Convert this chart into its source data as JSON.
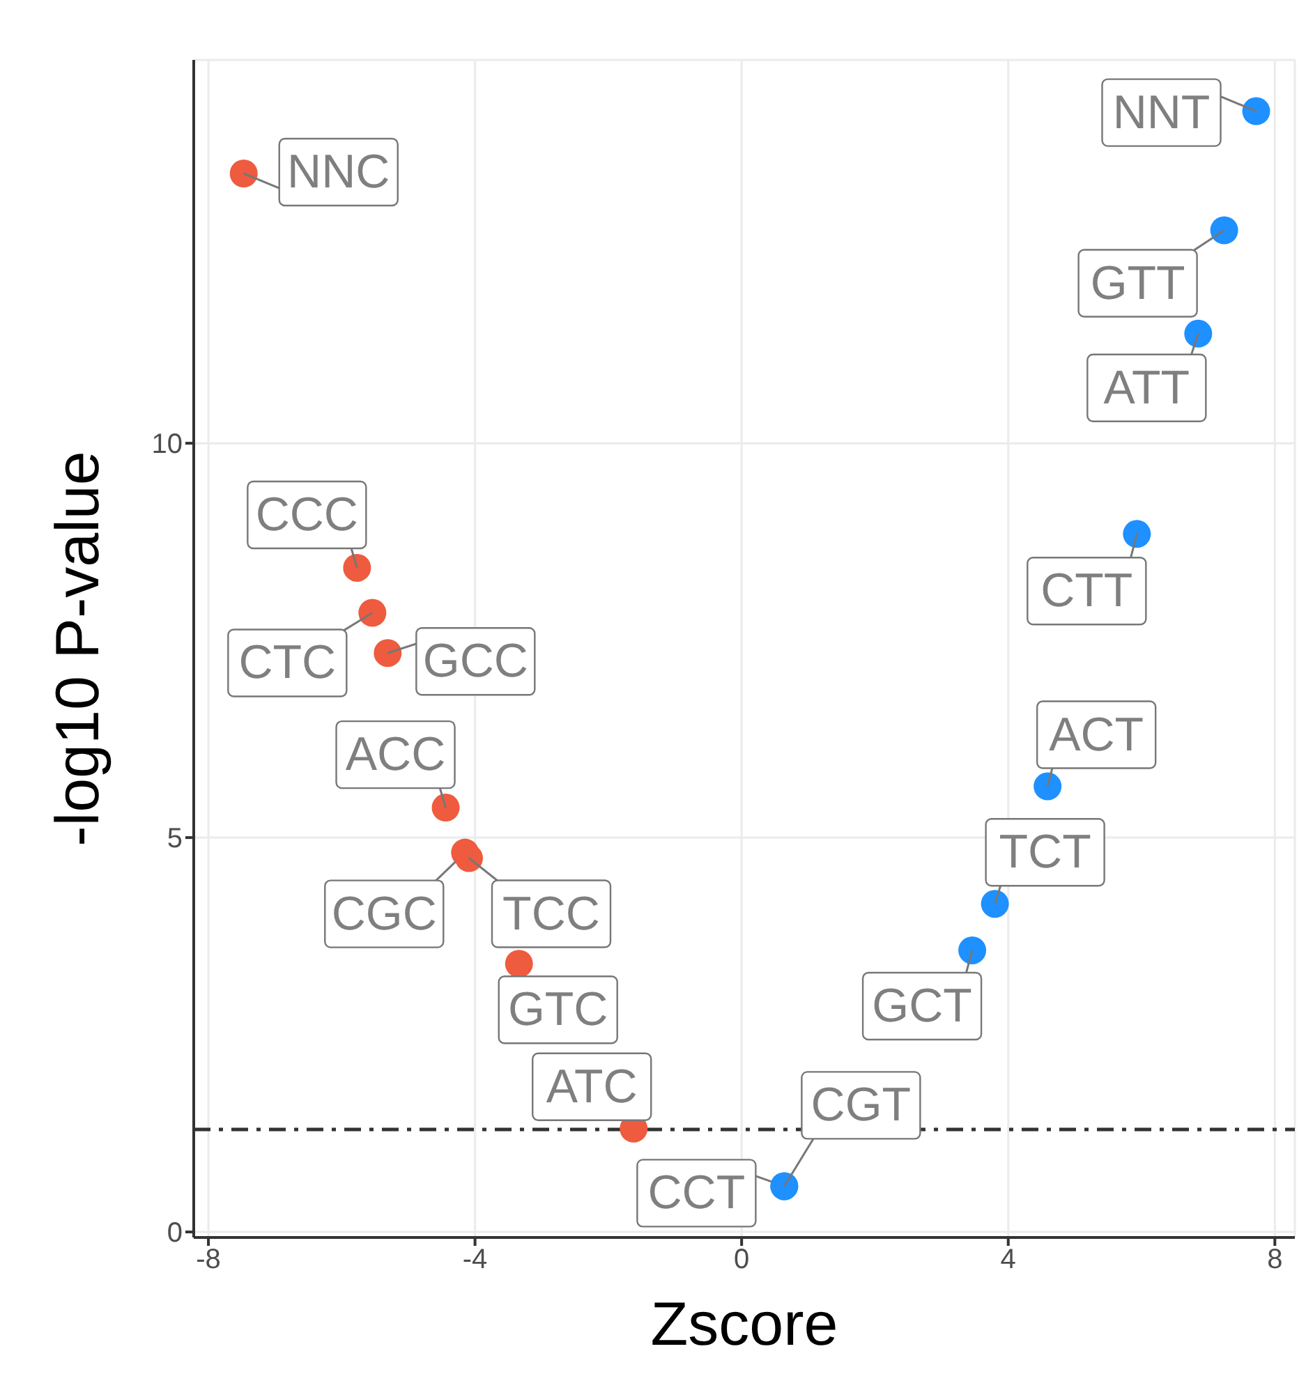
{
  "chart_data": {
    "type": "scatter",
    "xlabel": "Zscore",
    "ylabel": "-log10 P-value",
    "xlim": [
      -8.22,
      8.3
    ],
    "xticks": [
      -8,
      -4,
      0,
      4,
      8
    ],
    "ylim": [
      -0.07,
      14.86
    ],
    "yticks": [
      0,
      5,
      10
    ],
    "grid": true,
    "marker": "circle",
    "series": [
      {
        "color": "#ee5b3f",
        "x": [
          -7.47,
          -5.77,
          -5.54,
          -5.31,
          -4.44,
          -4.15,
          -4.09,
          -3.34,
          -1.62
        ],
        "values": [
          13.42,
          8.42,
          7.85,
          7.34,
          5.38,
          4.81,
          4.74,
          3.4,
          1.31
        ],
        "value_labels": [
          "NNC",
          "CCC",
          "CTC",
          "GCC",
          "ACC",
          "CGC",
          "TCC",
          "GTC",
          "ATC"
        ]
      },
      {
        "color": "#1e90ff",
        "x": [
          0.64,
          0.64,
          3.46,
          3.8,
          4.59,
          5.93,
          6.85,
          7.24,
          7.72
        ],
        "values": [
          0.58,
          0.58,
          3.57,
          4.16,
          5.65,
          8.85,
          11.39,
          12.7,
          14.21
        ],
        "value_labels": [
          "CCT",
          "CGT",
          "GCT",
          "TCT",
          "ACT",
          "CTT",
          "ATT",
          "GTT",
          "NNT"
        ]
      }
    ],
    "ref_lines": [
      {
        "axis": "y",
        "value": 1.3,
        "line_style": "dashdot",
        "color": "#333333"
      }
    ]
  }
}
